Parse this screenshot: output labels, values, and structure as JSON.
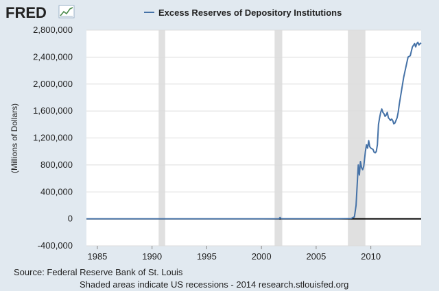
{
  "brand": {
    "logo_text": "FRED",
    "logo_icon": "line-chart-icon"
  },
  "colors": {
    "background": "#e1e9f0",
    "plot_bg": "#ffffff",
    "series": "#4572a7",
    "recession": "#e0e0e0",
    "zero_line": "#000000"
  },
  "footer": {
    "source": "Source: Federal Reserve Bank of St. Louis",
    "note": "Shaded areas indicate US recessions - 2014 research.stlouisfed.org"
  },
  "chart_data": {
    "type": "line",
    "title": "",
    "xlabel": "",
    "ylabel": "(Millions of Dollars)",
    "legend": [
      "Excess Reserves of Depository Institutions"
    ],
    "legend_position": "top-center",
    "xlim": [
      1984.0,
      2014.6
    ],
    "ylim": [
      -400000,
      2800000
    ],
    "x_ticks": [
      1985,
      1990,
      1995,
      2000,
      2005,
      2010
    ],
    "x_tick_labels": [
      "1985",
      "1990",
      "1995",
      "2000",
      "2005",
      "2010"
    ],
    "y_ticks": [
      -400000,
      0,
      400000,
      800000,
      1200000,
      1600000,
      2000000,
      2400000,
      2800000
    ],
    "y_tick_labels": [
      "-400,000",
      "0",
      "400,000",
      "800,000",
      "1,200,000",
      "1,600,000",
      "2,000,000",
      "2,400,000",
      "2,800,000"
    ],
    "grid": true,
    "recessions": [
      [
        1990.6,
        1991.2
      ],
      [
        2001.2,
        2001.9
      ],
      [
        2007.9,
        2009.5
      ]
    ],
    "series": [
      {
        "name": "Excess Reserves of Depository Institutions",
        "x": [
          1984.0,
          1990.0,
          2000.0,
          2001.6,
          2001.7,
          2001.8,
          2002.5,
          2005.0,
          2007.0,
          2008.2,
          2008.5,
          2008.65,
          2008.75,
          2008.85,
          2008.95,
          2009.05,
          2009.15,
          2009.25,
          2009.35,
          2009.5,
          2009.6,
          2009.7,
          2009.8,
          2009.9,
          2010.0,
          2010.1,
          2010.2,
          2010.3,
          2010.4,
          2010.5,
          2010.6,
          2010.7,
          2010.8,
          2010.9,
          2011.0,
          2011.1,
          2011.2,
          2011.3,
          2011.4,
          2011.5,
          2011.6,
          2011.7,
          2011.8,
          2011.9,
          2012.0,
          2012.1,
          2012.2,
          2012.3,
          2012.4,
          2012.5,
          2012.6,
          2012.7,
          2012.8,
          2012.9,
          2013.0,
          2013.2,
          2013.4,
          2013.6,
          2013.8,
          2014.0,
          2014.1,
          2014.2,
          2014.3,
          2014.4,
          2014.5,
          2014.6
        ],
        "values": [
          1000,
          1000,
          1000,
          2000,
          20000,
          2000,
          2000,
          2000,
          2000,
          5000,
          30000,
          200000,
          500000,
          800000,
          650000,
          850000,
          760000,
          730000,
          780000,
          1000000,
          1100000,
          1050000,
          1160000,
          1070000,
          1050000,
          1040000,
          1030000,
          990000,
          980000,
          1000000,
          1100000,
          1400000,
          1500000,
          1580000,
          1630000,
          1580000,
          1560000,
          1520000,
          1540000,
          1580000,
          1500000,
          1480000,
          1460000,
          1480000,
          1460000,
          1410000,
          1420000,
          1460000,
          1500000,
          1580000,
          1700000,
          1800000,
          1900000,
          2000000,
          2100000,
          2250000,
          2400000,
          2420000,
          2550000,
          2600000,
          2550000,
          2600000,
          2620000,
          2580000,
          2600000,
          2610000
        ]
      }
    ]
  }
}
